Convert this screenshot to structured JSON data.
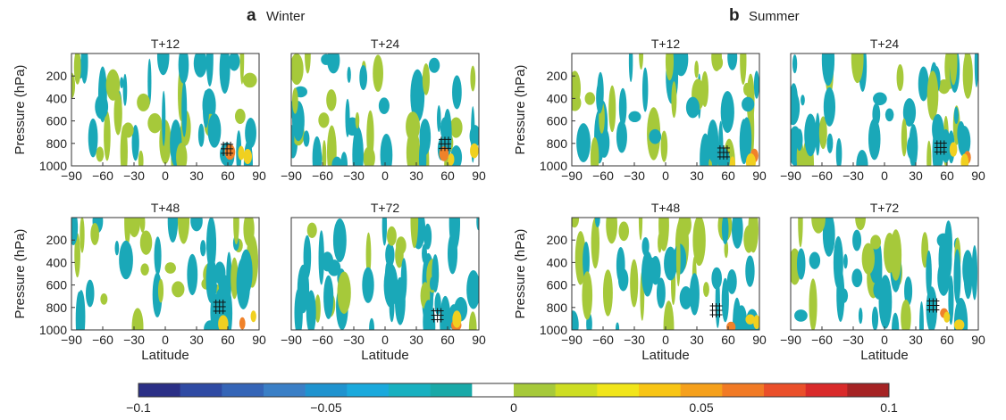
{
  "colors": {
    "colorbar": [
      "#2b2f86",
      "#2f4aa3",
      "#3565b7",
      "#3a7fc6",
      "#1f93cf",
      "#1aa9dc",
      "#18b0c0",
      "#19a9a8",
      "#ffffff",
      "#a6c93a",
      "#cddd22",
      "#f1e51a",
      "#f8c515",
      "#f5a01c",
      "#f17a25",
      "#ea4f2a",
      "#d92a2a",
      "#a52324"
    ],
    "negative_fill": "#1aa8b8",
    "positive_fill": "#a6c93a",
    "positive_strong": "#f0d020",
    "positive_extreme": "#f0822a",
    "hatch": "#111111"
  },
  "groups": [
    {
      "letter": "a",
      "name": "Winter"
    },
    {
      "letter": "b",
      "name": "Summer"
    }
  ],
  "colorbar": {
    "tick_labels": [
      "−0.1",
      "−0.05",
      "0",
      "0.05",
      "0.1"
    ]
  },
  "chart_data": [
    {
      "type": "heatmap",
      "group": "a Winter",
      "title": "T+12",
      "xlabel": "",
      "ylabel": "Pressure (hPa)",
      "xlim": [
        -90,
        90
      ],
      "ylim": [
        1000,
        0
      ],
      "xticks": [
        "−90",
        "−60",
        "−30",
        "0",
        "30",
        "60",
        "90"
      ],
      "yticks": [
        "200",
        "400",
        "600",
        "800",
        "1000"
      ],
      "colorbar_range": [
        -0.1,
        0.1
      ]
    },
    {
      "type": "heatmap",
      "group": "a Winter",
      "title": "T+24",
      "xlabel": "",
      "ylabel": "",
      "xlim": [
        -90,
        90
      ],
      "ylim": [
        1000,
        0
      ],
      "xticks": [
        "−90",
        "−60",
        "−30",
        "0",
        "30",
        "60",
        "90"
      ],
      "yticks": [],
      "colorbar_range": [
        -0.1,
        0.1
      ]
    },
    {
      "type": "heatmap",
      "group": "b Summer",
      "title": "T+12",
      "xlabel": "",
      "ylabel": "Pressure (hPa)",
      "xlim": [
        -90,
        90
      ],
      "ylim": [
        1000,
        0
      ],
      "xticks": [
        "−90",
        "−60",
        "−30",
        "0",
        "30",
        "60",
        "90"
      ],
      "yticks": [
        "200",
        "400",
        "600",
        "800",
        "1000"
      ],
      "colorbar_range": [
        -0.1,
        0.1
      ]
    },
    {
      "type": "heatmap",
      "group": "b Summer",
      "title": "T+24",
      "xlabel": "",
      "ylabel": "",
      "xlim": [
        -90,
        90
      ],
      "ylim": [
        1000,
        0
      ],
      "xticks": [
        "−90",
        "−60",
        "−30",
        "0",
        "30",
        "60",
        "90"
      ],
      "yticks": [],
      "colorbar_range": [
        -0.1,
        0.1
      ]
    },
    {
      "type": "heatmap",
      "group": "a Winter",
      "title": "T+48",
      "xlabel": "Latitude",
      "ylabel": "Pressure (hPa)",
      "xlim": [
        -90,
        90
      ],
      "ylim": [
        1000,
        0
      ],
      "xticks": [
        "−90",
        "−60",
        "−30",
        "0",
        "30",
        "60",
        "90"
      ],
      "yticks": [
        "200",
        "400",
        "600",
        "800",
        "1000"
      ],
      "colorbar_range": [
        -0.1,
        0.1
      ]
    },
    {
      "type": "heatmap",
      "group": "a Winter",
      "title": "T+72",
      "xlabel": "Latitude",
      "ylabel": "",
      "xlim": [
        -90,
        90
      ],
      "ylim": [
        1000,
        0
      ],
      "xticks": [
        "−90",
        "−60",
        "−30",
        "0",
        "30",
        "60",
        "90"
      ],
      "yticks": [],
      "colorbar_range": [
        -0.1,
        0.1
      ]
    },
    {
      "type": "heatmap",
      "group": "b Summer",
      "title": "T+48",
      "xlabel": "Latitude",
      "ylabel": "Pressure (hPa)",
      "xlim": [
        -90,
        90
      ],
      "ylim": [
        1000,
        0
      ],
      "xticks": [
        "−90",
        "−60",
        "−30",
        "0",
        "30",
        "60",
        "90"
      ],
      "yticks": [
        "200",
        "400",
        "600",
        "800",
        "1000"
      ],
      "colorbar_range": [
        -0.1,
        0.1
      ]
    },
    {
      "type": "heatmap",
      "group": "b Summer",
      "title": "T+72",
      "xlabel": "Latitude",
      "ylabel": "",
      "xlim": [
        -90,
        90
      ],
      "ylim": [
        1000,
        0
      ],
      "xticks": [
        "−90",
        "−60",
        "−30",
        "0",
        "30",
        "60",
        "90"
      ],
      "yticks": [],
      "colorbar_range": [
        -0.1,
        0.1
      ]
    }
  ]
}
